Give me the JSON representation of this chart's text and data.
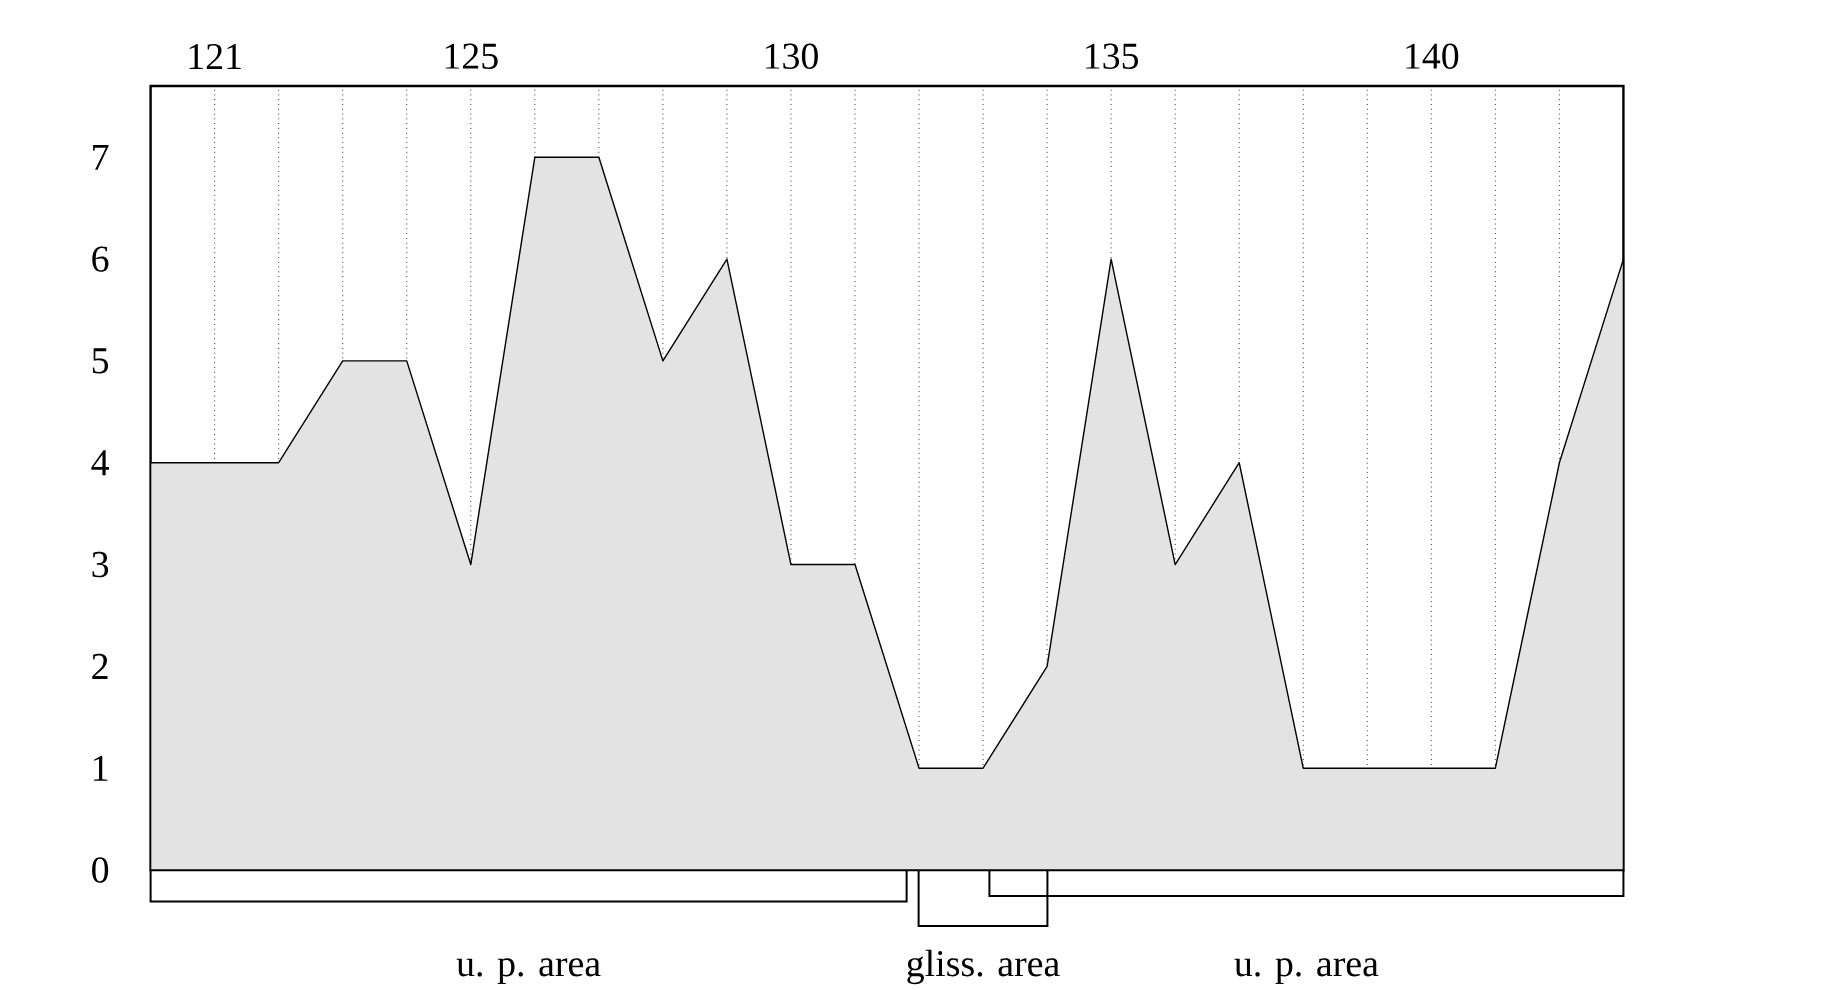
{
  "chart_data": {
    "type": "area",
    "x": [
      120,
      121,
      122,
      123,
      124,
      125,
      126,
      127,
      128,
      129,
      130,
      131,
      132,
      133,
      134,
      135,
      136,
      137,
      138,
      139,
      140,
      141,
      142,
      143
    ],
    "values": [
      4,
      4,
      4,
      5,
      5,
      3,
      7,
      7,
      5,
      6,
      3,
      3,
      1,
      1,
      2,
      6,
      3,
      4,
      1,
      1,
      1,
      1,
      4,
      6
    ],
    "color": "#e3e3e3",
    "xlim": [
      120,
      143
    ],
    "ylim": [
      0,
      7.7
    ],
    "xticks": [
      121,
      {
        "value": 122,
        "label": null
      },
      {
        "value": 123,
        "label": null
      },
      {
        "value": 124,
        "label": null
      },
      125,
      {
        "value": 126,
        "label": null
      },
      {
        "value": 127,
        "label": null
      },
      {
        "value": 128,
        "label": null
      },
      {
        "value": 129,
        "label": null
      },
      130,
      {
        "value": 131,
        "label": null
      },
      {
        "value": 132,
        "label": null
      },
      {
        "value": 133,
        "label": null
      },
      {
        "value": 134,
        "label": null
      },
      135,
      {
        "value": 136,
        "label": null
      },
      {
        "value": 137,
        "label": null
      },
      {
        "value": 138,
        "label": null
      },
      {
        "value": 139,
        "label": null
      },
      140,
      {
        "value": 141,
        "label": null
      },
      {
        "value": 142,
        "label": null
      }
    ],
    "yticks": [
      0,
      1,
      2,
      3,
      4,
      5,
      6,
      7
    ],
    "grid": "x",
    "annotations": [
      "u. p. area",
      "gliss. area",
      "u. p. area"
    ]
  }
}
